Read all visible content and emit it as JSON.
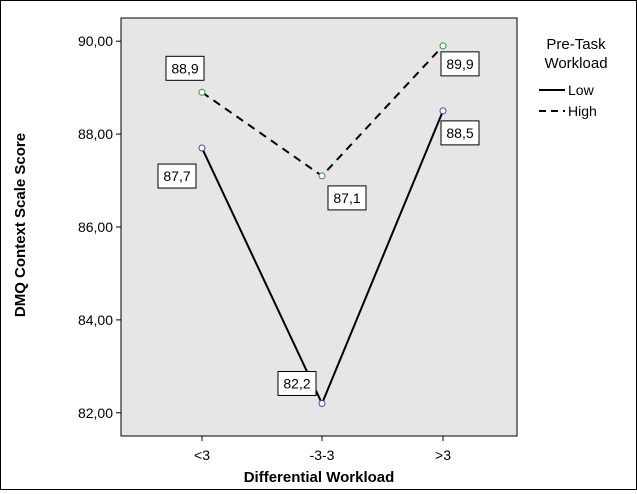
{
  "chart_data": {
    "type": "line",
    "xlabel": "Differential Workload",
    "ylabel": "DMQ Context Scale Score",
    "categories": [
      "<3",
      "-3-3",
      ">3"
    ],
    "ylim": [
      81.5,
      90.5
    ],
    "yticks": [
      82,
      84,
      86,
      88,
      90
    ],
    "ytick_labels": [
      "82,00",
      "84,00",
      "86,00",
      "88,00",
      "90,00"
    ],
    "grid": false,
    "legend": {
      "title_line1": "Pre-Task",
      "title_line2": "Workload",
      "placement": "right-top",
      "entries": [
        "Low",
        "High"
      ]
    },
    "series": [
      {
        "name": "Low",
        "line_style": "solid",
        "color": "#000000",
        "marker_color": "#3a4fb0",
        "values": [
          87.7,
          82.2,
          88.5
        ],
        "labels": [
          "87,7",
          "82,2",
          "88,5"
        ]
      },
      {
        "name": "High",
        "line_style": "dashed",
        "color": "#000000",
        "marker_color": "#2f9a2f",
        "values": [
          88.9,
          87.1,
          89.9
        ],
        "labels": [
          "88,9",
          "87,1",
          "89,9"
        ]
      }
    ]
  },
  "colors": {
    "plot_background": "#e6e6e6",
    "page_background": "#ffffff"
  }
}
